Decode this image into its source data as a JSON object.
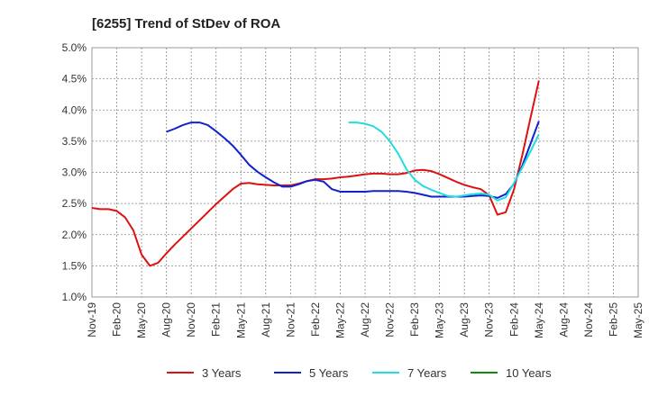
{
  "chart_data": {
    "type": "line",
    "title": "[6255]  Trend of StDev of ROA",
    "xlabel": "",
    "ylabel": "",
    "x_ticks": [
      "Nov-19",
      "Feb-20",
      "May-20",
      "Aug-20",
      "Nov-20",
      "Feb-21",
      "May-21",
      "Aug-21",
      "Nov-21",
      "Feb-22",
      "May-22",
      "Aug-22",
      "Nov-22",
      "Feb-23",
      "May-23",
      "Aug-23",
      "Nov-23",
      "Feb-24",
      "May-24",
      "Aug-24",
      "Nov-24",
      "Feb-25",
      "May-25"
    ],
    "y_ticks": [
      "1.0%",
      "1.5%",
      "2.0%",
      "2.5%",
      "3.0%",
      "3.5%",
      "4.0%",
      "4.5%",
      "5.0%"
    ],
    "ylim": [
      1.0,
      5.0
    ],
    "grid": true,
    "legend_position": "bottom",
    "series": [
      {
        "name": "3 Years",
        "color": "#dd1111",
        "values": [
          2.43,
          2.41,
          2.41,
          2.38,
          2.28,
          2.07,
          1.68,
          1.5,
          1.55,
          1.7,
          1.84,
          1.97,
          2.1,
          2.23,
          2.36,
          2.49,
          2.61,
          2.73,
          2.82,
          2.83,
          2.81,
          2.8,
          2.79,
          2.79,
          2.79,
          2.82,
          2.86,
          2.89,
          2.89,
          2.9,
          2.92,
          2.93,
          2.95,
          2.97,
          2.98,
          2.98,
          2.97,
          2.97,
          2.99,
          3.03,
          3.04,
          3.02,
          2.97,
          2.91,
          2.85,
          2.8,
          2.76,
          2.73,
          2.63,
          2.32,
          2.36,
          2.73,
          3.28,
          3.88,
          4.47
        ]
      },
      {
        "name": "5 Years",
        "color": "#1122cc",
        "values": [
          null,
          null,
          null,
          null,
          null,
          null,
          null,
          null,
          null,
          3.65,
          3.7,
          3.76,
          3.8,
          3.8,
          3.76,
          3.66,
          3.55,
          3.43,
          3.28,
          3.12,
          3.01,
          2.92,
          2.84,
          2.77,
          2.77,
          2.81,
          2.86,
          2.88,
          2.85,
          2.73,
          2.69,
          2.69,
          2.69,
          2.69,
          2.7,
          2.7,
          2.7,
          2.7,
          2.69,
          2.67,
          2.64,
          2.61,
          2.61,
          2.61,
          2.61,
          2.61,
          2.62,
          2.63,
          2.62,
          2.59,
          2.65,
          2.82,
          3.11,
          3.46,
          3.82
        ]
      },
      {
        "name": "7 Years",
        "color": "#22dddd",
        "values": [
          null,
          null,
          null,
          null,
          null,
          null,
          null,
          null,
          null,
          null,
          null,
          null,
          null,
          null,
          null,
          null,
          null,
          null,
          null,
          null,
          null,
          null,
          null,
          null,
          null,
          null,
          null,
          null,
          null,
          null,
          null,
          3.8,
          3.8,
          3.78,
          3.74,
          3.65,
          3.5,
          3.3,
          3.05,
          2.88,
          2.78,
          2.72,
          2.67,
          2.62,
          2.61,
          2.63,
          2.65,
          2.66,
          2.64,
          2.55,
          2.6,
          2.83,
          3.08,
          3.34,
          3.61
        ]
      },
      {
        "name": "10 Years",
        "color": "#118811",
        "values": []
      }
    ]
  }
}
